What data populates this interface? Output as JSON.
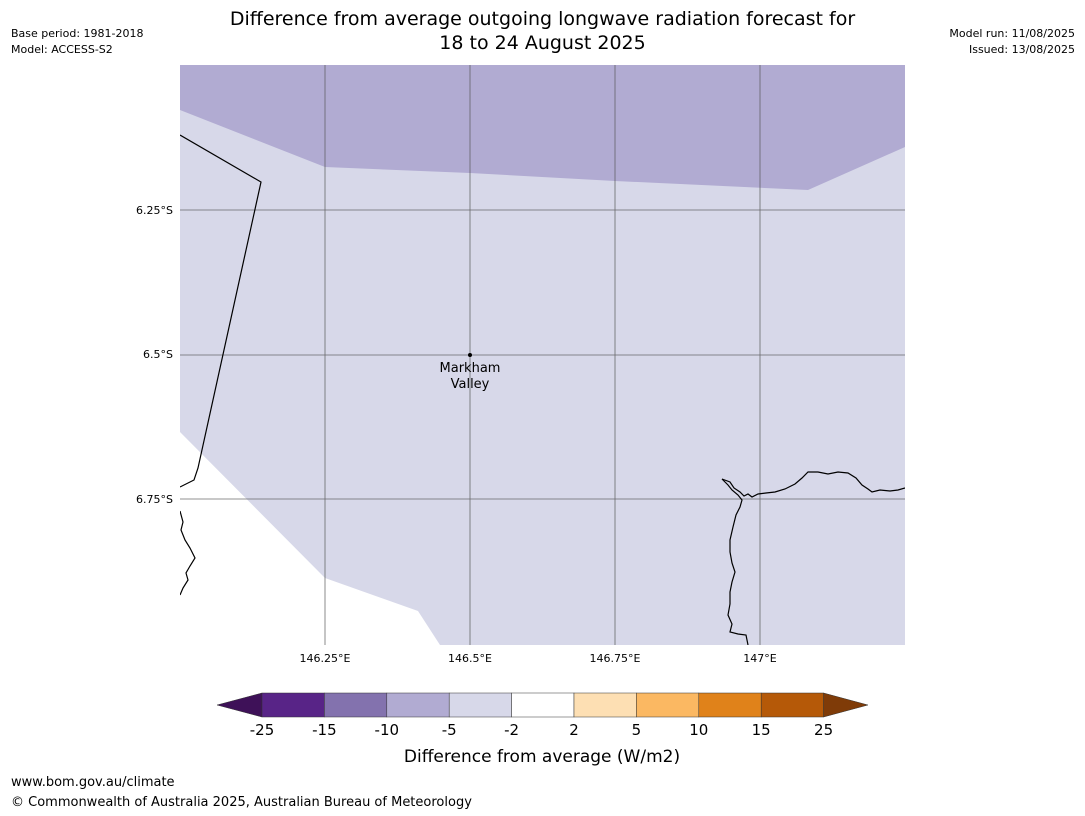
{
  "header": {
    "base_period": "Base period: 1981-2018",
    "model": "Model: ACCESS-S2",
    "model_run": "Model run: 11/08/2025",
    "issued": "Issued: 13/08/2025",
    "title_line1": "Difference from average outgoing longwave radiation forecast for",
    "title_line2": "18 to 24 August 2025"
  },
  "map": {
    "lat_labels": [
      "6.25°S",
      "6.5°S",
      "6.75°S"
    ],
    "lon_labels": [
      "146.25°E",
      "146.5°E",
      "146.75°E",
      "147°E"
    ],
    "place": {
      "name_line1": "Markham",
      "name_line2": "Valley"
    },
    "colors": {
      "band_-10_-5": "#b1abd2",
      "band_-5_-2": "#d7d8e9",
      "background": "#ffffff",
      "grid": "#555555",
      "coast": "#000000"
    }
  },
  "legend": {
    "label": "Difference from average (W/m2)",
    "ticks": [
      "-25",
      "-15",
      "-10",
      "-5",
      "-2",
      "2",
      "5",
      "10",
      "15",
      "25"
    ],
    "colors": [
      "#3e1158",
      "#582487",
      "#8372ae",
      "#b1abd2",
      "#d7d8e9",
      "#ffffff",
      "#fddfb3",
      "#fbb862",
      "#e0821a",
      "#b55908",
      "#7f3b08"
    ]
  },
  "footer": {
    "url": "www.bom.gov.au/climate",
    "copyright": "© Commonwealth of Australia 2025, Australian Bureau of Meteorology"
  }
}
